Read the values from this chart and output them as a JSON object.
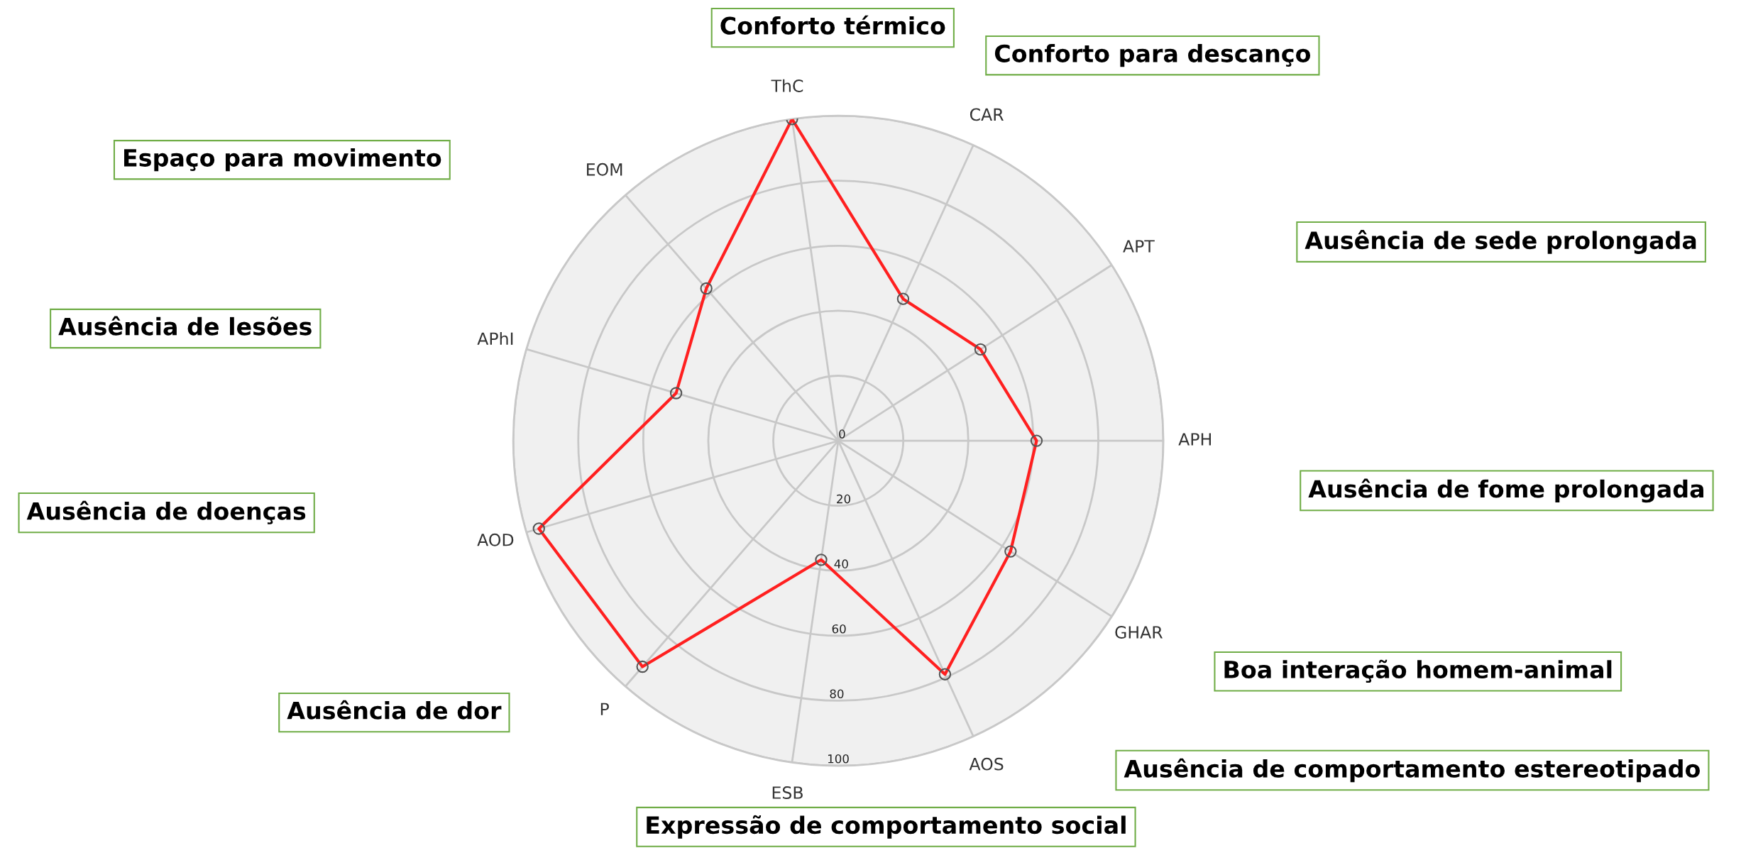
{
  "chart_data": {
    "type": "radar",
    "categories": [
      "ThC",
      "CAR",
      "APT",
      "APH",
      "GHAR",
      "AOS",
      "ESB",
      "P",
      "AOD",
      "APhI",
      "EOM"
    ],
    "series": [
      {
        "color": "#ff2020",
        "values": [
          100,
          48,
          52,
          61,
          63,
          79,
          37,
          92,
          96,
          52,
          62
        ]
      }
    ],
    "ylim": [
      0,
      100
    ],
    "yticks": [
      0,
      20,
      40,
      60,
      80,
      100
    ],
    "grid": true,
    "marker": "circle",
    "line_style": "solid",
    "annotations": [
      "Conforto térmico",
      "Conforto para descanço",
      "Ausência de sede prolongada",
      "Ausência de fome prolongada",
      "Boa interação homem-animal",
      "Ausência de comportamento estereotipado",
      "Expressão de comportamento social",
      "Ausência de dor",
      "Ausência de doenças",
      "Ausência de lesões",
      "Espaço para movimento"
    ]
  }
}
